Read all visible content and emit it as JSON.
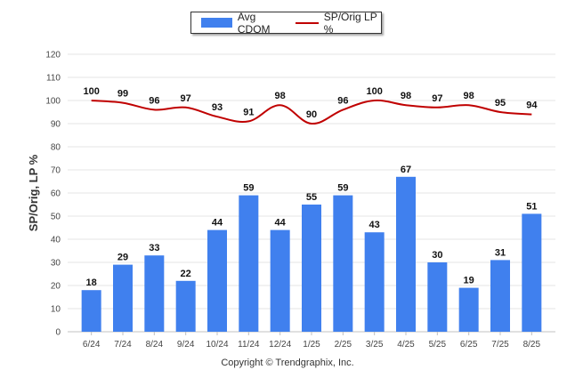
{
  "chart_data": {
    "type": "bar",
    "categories": [
      "6/24",
      "7/24",
      "8/24",
      "9/24",
      "10/24",
      "11/24",
      "12/24",
      "1/25",
      "2/25",
      "3/25",
      "4/25",
      "5/25",
      "6/25",
      "7/25",
      "8/25"
    ],
    "series": [
      {
        "name": "Avg CDOM",
        "type": "bar",
        "color": "#4080ee",
        "values": [
          18,
          29,
          33,
          22,
          44,
          59,
          44,
          55,
          59,
          43,
          67,
          30,
          19,
          31,
          51
        ]
      },
      {
        "name": "SP/Orig LP %",
        "type": "line",
        "color": "#c00000",
        "values": [
          100,
          99,
          96,
          97,
          93,
          91,
          98,
          90,
          96,
          100,
          98,
          97,
          98,
          95,
          94
        ]
      }
    ],
    "xlabel": "",
    "ylabel": "SP/Orig, LP %",
    "ylim": [
      0,
      120
    ],
    "yticks": [
      0,
      10,
      20,
      30,
      40,
      50,
      60,
      70,
      80,
      90,
      100,
      110,
      120
    ],
    "grid": true,
    "legend_position": "top-center"
  },
  "footer": {
    "copyright": "Copyright © Trendgraphix, Inc."
  }
}
